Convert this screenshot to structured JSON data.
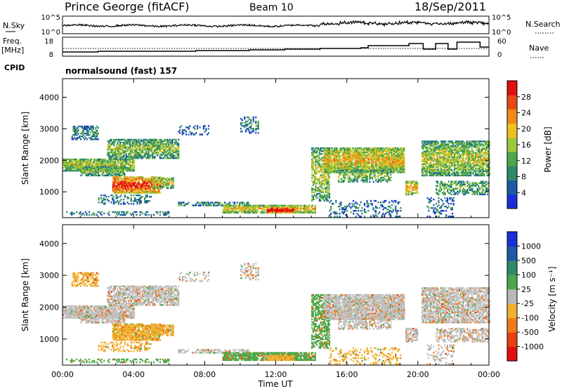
{
  "header": {
    "title": "Prince George (fitACF)",
    "beam": "Beam 10",
    "date": "18/Sep/2011"
  },
  "top_panels": {
    "nsky_label": "N.Sky",
    "nsky_ticks": [
      "10^5",
      "10^0"
    ],
    "nsearch_label": "N.Search",
    "nsearch_ticks": [
      "10^5",
      "10^0"
    ],
    "freq_label": "Freq.",
    "freq_unit": "[MHz]",
    "freq_ticks": [
      "18",
      "8"
    ],
    "nave_label": "Nave",
    "nave_ticks": [
      "60",
      "0"
    ],
    "cpid_label": "CPID",
    "cpid_text": "normalsound (fast) 157"
  },
  "chart_data": [
    {
      "type": "heatmap",
      "name": "power",
      "ylabel": "Slant Range [km]",
      "yticks": [
        "1000",
        "2000",
        "3000",
        "4000"
      ],
      "ylim": [
        180,
        4590
      ],
      "colorbar": {
        "label": "Power [dB]",
        "ticks": [
          "4",
          "8",
          "12",
          "16",
          "20",
          "24",
          "28"
        ],
        "range": [
          0,
          30
        ]
      }
    },
    {
      "type": "heatmap",
      "name": "velocity",
      "ylabel": "Slant Range [km]",
      "yticks": [
        "1000",
        "2000",
        "3000",
        "4000"
      ],
      "ylim": [
        180,
        4590
      ],
      "xlabel": "Time UT",
      "xticks": [
        "00:00",
        "04:00",
        "08:00",
        "12:00",
        "16:00",
        "20:00",
        "00:00"
      ],
      "xlim_hours": [
        0,
        24
      ],
      "colorbar": {
        "label": "Velocity [m s⁻¹]",
        "ticks": [
          "1000",
          "500",
          "100",
          "25",
          "-25",
          "-100",
          "-500",
          "-1000"
        ]
      }
    }
  ],
  "colors": {
    "ground_scatter": "#c0c0c0",
    "power_scale": [
      "#1a2fd6",
      "#1c5aa8",
      "#2f8a6a",
      "#4aa84a",
      "#9cc83a",
      "#f0c020",
      "#f08a18",
      "#e84a12",
      "#e01010"
    ],
    "velocity_scale": [
      "#1a2fd6",
      "#1c5aa8",
      "#2f8a6a",
      "#4aa84a",
      "#b8b8b8",
      "#f0b030",
      "#f07a18",
      "#e84012",
      "#e01010"
    ]
  }
}
